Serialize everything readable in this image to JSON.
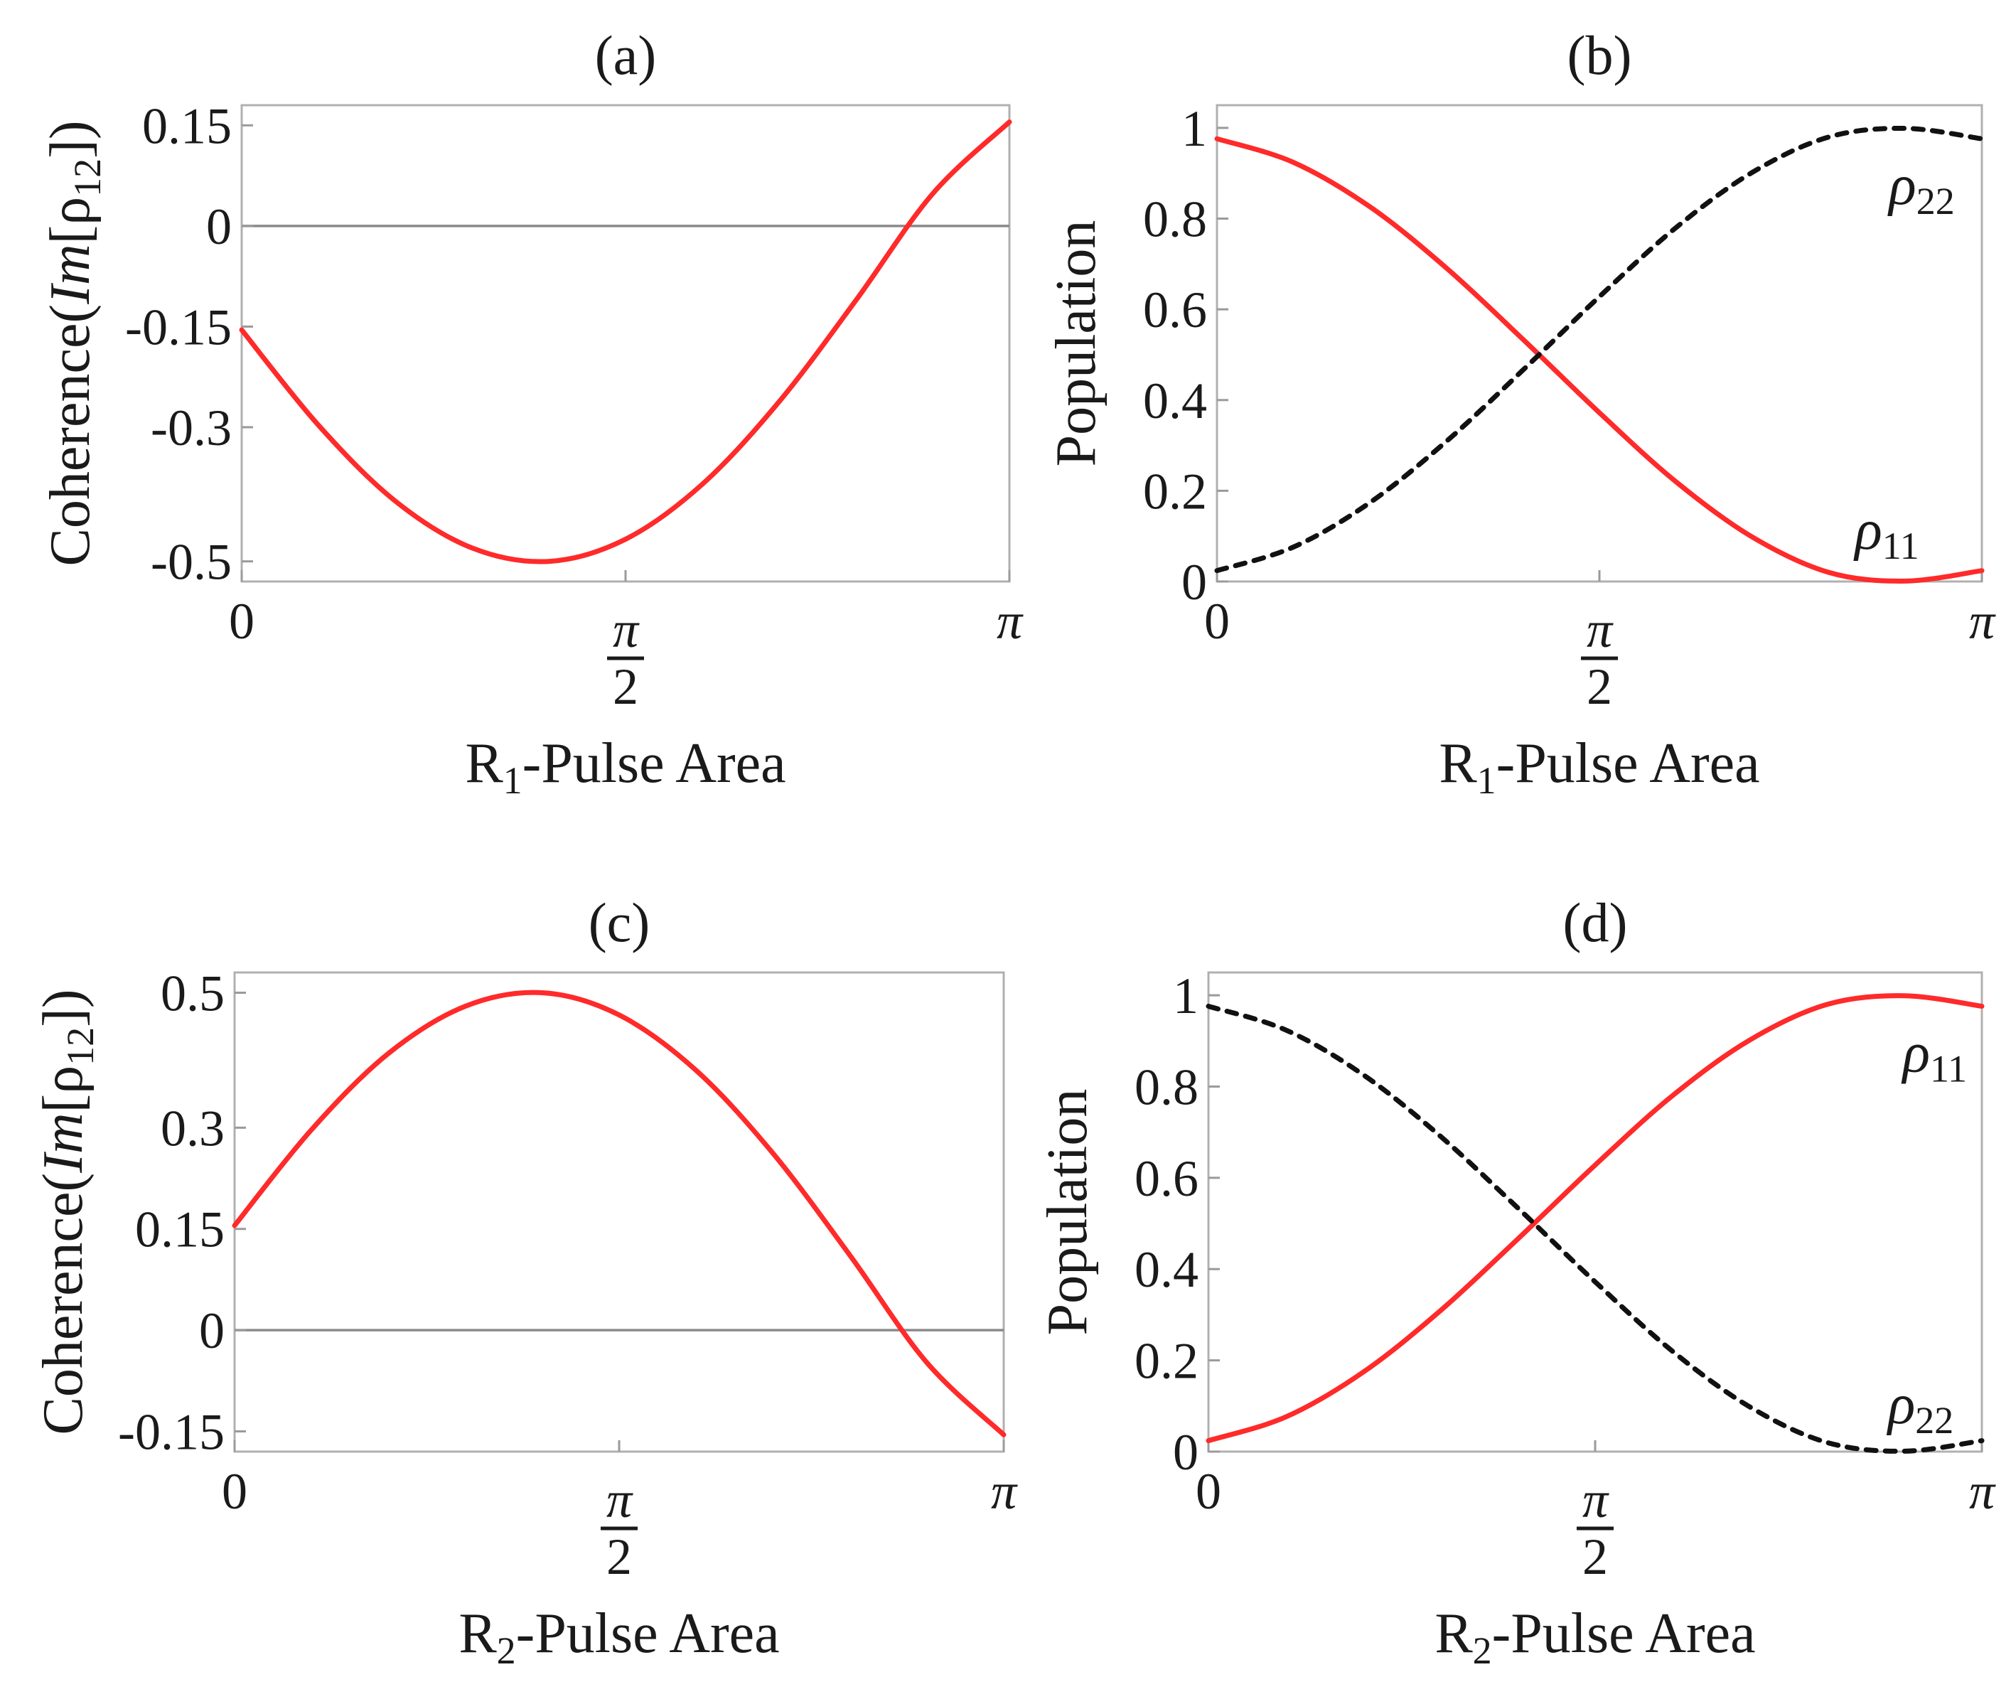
{
  "chart_data": [
    {
      "id": "a",
      "type": "line",
      "title": "(a)",
      "xlabel": {
        "main": "R",
        "sub": "1",
        "rest": "-Pulse Area"
      },
      "ylabel": {
        "pre": "Coherence(",
        "it": "Im",
        "mid": "[ρ",
        "sub": "12",
        "post": "])"
      },
      "xlim": [
        0,
        3.1416
      ],
      "ylim": [
        -0.53,
        0.18
      ],
      "xticks": [
        {
          "value": 0,
          "label": "0"
        },
        {
          "value": 1.5708,
          "label": "",
          "num": "π",
          "den": "2"
        },
        {
          "value": 3.1416,
          "label": "π"
        }
      ],
      "yticks": [
        {
          "value": 0.15,
          "label": "0.15"
        },
        {
          "value": 0,
          "label": "0"
        },
        {
          "value": -0.15,
          "label": "-0.15"
        },
        {
          "value": -0.3,
          "label": "-0.3"
        },
        {
          "value": -0.5,
          "label": "-0.5"
        }
      ],
      "zero_line": true,
      "series": [
        {
          "color": "#ff2a2a",
          "style": "solid",
          "x": [
            0,
            0.3142,
            0.6283,
            0.9425,
            1.2566,
            1.5708,
            1.885,
            2.1991,
            2.5133,
            2.8274,
            3.1416
          ],
          "y": [
            -0.155,
            -0.297,
            -0.41,
            -0.48,
            -0.5,
            -0.467,
            -0.385,
            -0.262,
            -0.111,
            0.048,
            0.155
          ]
        }
      ],
      "annotations": []
    },
    {
      "id": "b",
      "type": "line",
      "title": "(b)",
      "xlabel": {
        "main": "R",
        "sub": "1",
        "rest": "-Pulse Area"
      },
      "ylabel": {
        "pre": "Population",
        "it": "",
        "mid": "",
        "sub": "",
        "post": ""
      },
      "xlim": [
        0,
        3.1416
      ],
      "ylim": [
        0,
        1.05
      ],
      "xticks": [
        {
          "value": 0,
          "label": "0"
        },
        {
          "value": 1.5708,
          "label": "",
          "num": "π",
          "den": "2"
        },
        {
          "value": 3.1416,
          "label": "π"
        }
      ],
      "yticks": [
        {
          "value": 1,
          "label": "1"
        },
        {
          "value": 0.8,
          "label": "0.8"
        },
        {
          "value": 0.6,
          "label": "0.6"
        },
        {
          "value": 0.4,
          "label": "0.4"
        },
        {
          "value": 0.2,
          "label": "0.2"
        },
        {
          "value": 0,
          "label": "0"
        }
      ],
      "zero_line": false,
      "series": [
        {
          "color": "#ff2a2a",
          "style": "solid",
          "x": [
            0,
            0.3142,
            0.6283,
            0.9425,
            1.2566,
            1.5708,
            1.885,
            2.1991,
            2.5133,
            2.8274,
            3.1416
          ],
          "y": [
            0.976,
            0.924,
            0.826,
            0.691,
            0.534,
            0.372,
            0.22,
            0.098,
            0.02,
            0.001,
            0.024
          ]
        },
        {
          "color": "#111111",
          "style": "dashed",
          "x": [
            0,
            0.3142,
            0.6283,
            0.9425,
            1.2566,
            1.5708,
            1.885,
            2.1991,
            2.5133,
            2.8274,
            3.1416
          ],
          "y": [
            0.024,
            0.076,
            0.174,
            0.309,
            0.466,
            0.628,
            0.78,
            0.902,
            0.98,
            0.999,
            0.976
          ]
        }
      ],
      "annotations": [
        {
          "text": "ρ",
          "sub": "22",
          "x": 2.76,
          "y": 0.87
        },
        {
          "text": "ρ",
          "sub": "11",
          "x": 2.62,
          "y": 0.11
        }
      ]
    },
    {
      "id": "c",
      "type": "line",
      "title": "(c)",
      "xlabel": {
        "main": "R",
        "sub": "2",
        "rest": "-Pulse Area"
      },
      "ylabel": {
        "pre": "Coherence(",
        "it": "Im",
        "mid": "[ρ",
        "sub": "12",
        "post": "])"
      },
      "xlim": [
        0,
        3.1416
      ],
      "ylim": [
        -0.18,
        0.53
      ],
      "xticks": [
        {
          "value": 0,
          "label": "0"
        },
        {
          "value": 1.5708,
          "label": "",
          "num": "π",
          "den": "2"
        },
        {
          "value": 3.1416,
          "label": "π"
        }
      ],
      "yticks": [
        {
          "value": 0.5,
          "label": "0.5"
        },
        {
          "value": 0.3,
          "label": "0.3"
        },
        {
          "value": 0.15,
          "label": "0.15"
        },
        {
          "value": 0,
          "label": "0"
        },
        {
          "value": -0.15,
          "label": "-0.15"
        }
      ],
      "zero_line": true,
      "series": [
        {
          "color": "#ff2a2a",
          "style": "solid",
          "x": [
            0,
            0.3142,
            0.6283,
            0.9425,
            1.2566,
            1.5708,
            1.885,
            2.1991,
            2.5133,
            2.8274,
            3.1416
          ],
          "y": [
            0.155,
            0.297,
            0.41,
            0.48,
            0.5,
            0.467,
            0.385,
            0.262,
            0.111,
            -0.048,
            -0.155
          ]
        }
      ],
      "annotations": []
    },
    {
      "id": "d",
      "type": "line",
      "title": "(d)",
      "xlabel": {
        "main": "R",
        "sub": "2",
        "rest": "-Pulse Area"
      },
      "ylabel": {
        "pre": "Population",
        "it": "",
        "mid": "",
        "sub": "",
        "post": ""
      },
      "xlim": [
        0,
        3.1416
      ],
      "ylim": [
        0,
        1.05
      ],
      "xticks": [
        {
          "value": 0,
          "label": "0"
        },
        {
          "value": 1.5708,
          "label": "",
          "num": "π",
          "den": "2"
        },
        {
          "value": 3.1416,
          "label": "π"
        }
      ],
      "yticks": [
        {
          "value": 1,
          "label": "1"
        },
        {
          "value": 0.8,
          "label": "0.8"
        },
        {
          "value": 0.6,
          "label": "0.6"
        },
        {
          "value": 0.4,
          "label": "0.4"
        },
        {
          "value": 0.2,
          "label": "0.2"
        },
        {
          "value": 0,
          "label": "0"
        }
      ],
      "zero_line": false,
      "series": [
        {
          "color": "#ff2a2a",
          "style": "solid",
          "x": [
            0,
            0.3142,
            0.6283,
            0.9425,
            1.2566,
            1.5708,
            1.885,
            2.1991,
            2.5133,
            2.8274,
            3.1416
          ],
          "y": [
            0.024,
            0.076,
            0.174,
            0.309,
            0.466,
            0.628,
            0.78,
            0.902,
            0.98,
            0.999,
            0.976
          ]
        },
        {
          "color": "#111111",
          "style": "dashed",
          "x": [
            0,
            0.3142,
            0.6283,
            0.9425,
            1.2566,
            1.5708,
            1.885,
            2.1991,
            2.5133,
            2.8274,
            3.1416
          ],
          "y": [
            0.976,
            0.924,
            0.826,
            0.691,
            0.534,
            0.372,
            0.22,
            0.098,
            0.02,
            0.001,
            0.024
          ]
        }
      ],
      "annotations": [
        {
          "text": "ρ",
          "sub": "11",
          "x": 2.82,
          "y": 0.87
        },
        {
          "text": "ρ",
          "sub": "22",
          "x": 2.76,
          "y": 0.1
        }
      ]
    }
  ]
}
